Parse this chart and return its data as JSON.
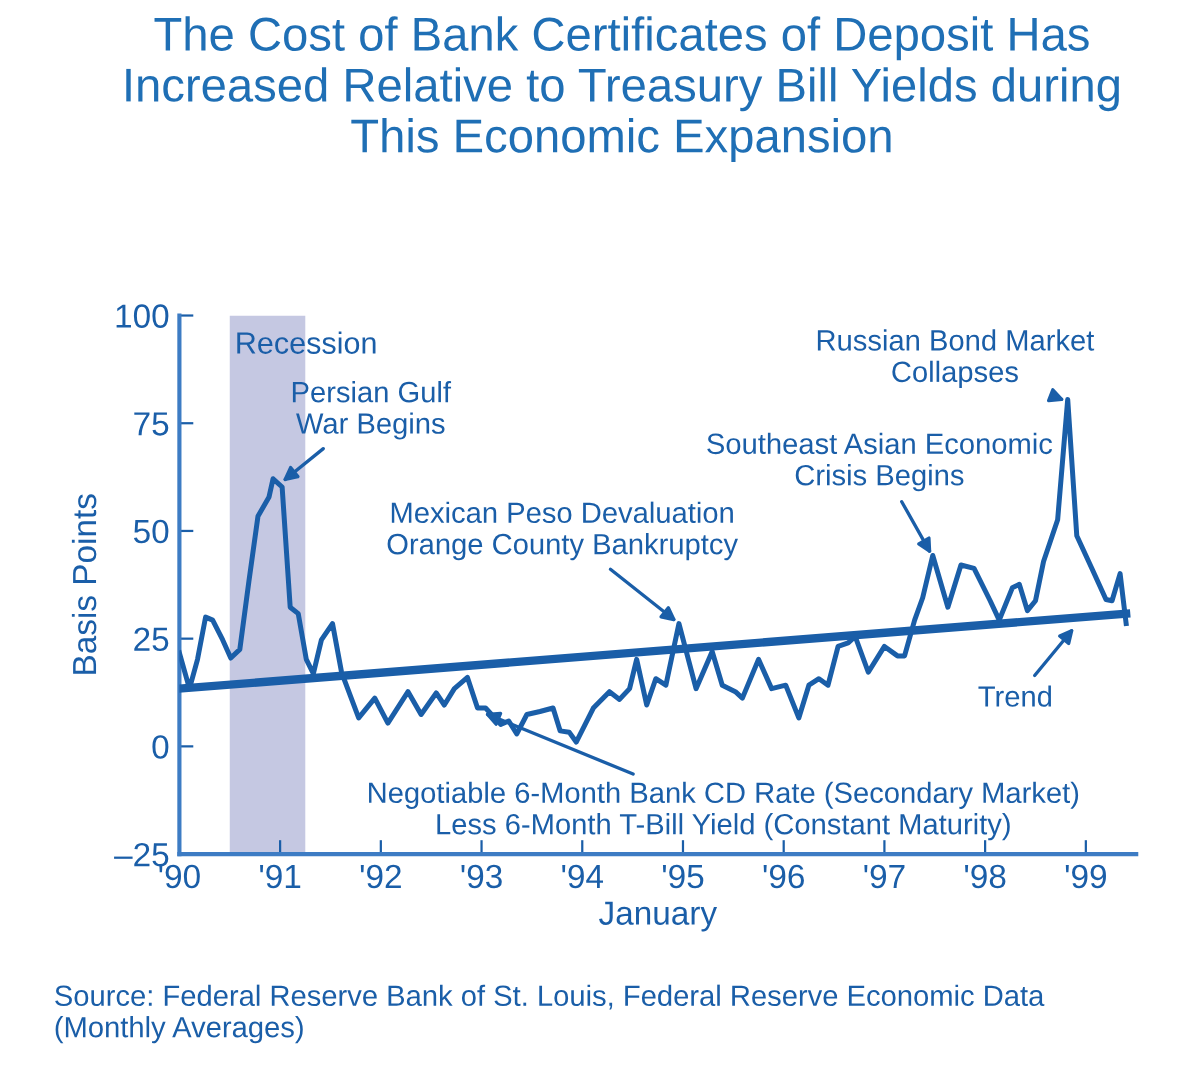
{
  "chart_data": {
    "type": "line",
    "title": "The Cost of Bank Certificates of Deposit Has\nIncreased Relative to Treasury Bill Yields during\nThis Economic Expansion",
    "xlabel": "January",
    "ylabel": "Basis Points",
    "xlim": [
      1990,
      1999.5
    ],
    "ylim": [
      -25,
      100
    ],
    "xticks": [
      {
        "value": 1990,
        "label": "'90"
      },
      {
        "value": 1991,
        "label": "'91"
      },
      {
        "value": 1992,
        "label": "'92"
      },
      {
        "value": 1993,
        "label": "'93"
      },
      {
        "value": 1994,
        "label": "'94"
      },
      {
        "value": 1995,
        "label": "'95"
      },
      {
        "value": 1996,
        "label": "'96"
      },
      {
        "value": 1997,
        "label": "'97"
      },
      {
        "value": 1998,
        "label": "'98"
      },
      {
        "value": 1999,
        "label": "'99"
      }
    ],
    "yticks": [
      {
        "value": -25,
        "label": "–25"
      },
      0,
      25,
      50,
      75,
      100
    ],
    "grid": false,
    "legend": false,
    "marker": "none",
    "line_style": "solid",
    "bands": [
      {
        "axis": "x",
        "from": 1990.5,
        "to": 1991.25,
        "label": "Recession",
        "color": "#c5c8e2"
      }
    ],
    "series": [
      {
        "color": "#1a5ea8",
        "x": [
          1990.0,
          1990.1,
          1990.18,
          1990.26,
          1990.33,
          1990.43,
          1990.51,
          1990.6,
          1990.69,
          1990.78,
          1990.89,
          1990.93,
          1991.02,
          1991.1,
          1991.18,
          1991.26,
          1991.33,
          1991.41,
          1991.52,
          1991.61,
          1991.78,
          1991.94,
          1992.07,
          1992.27,
          1992.4,
          1992.55,
          1992.63,
          1992.73,
          1992.86,
          1992.96,
          1993.04,
          1993.19,
          1993.27,
          1993.35,
          1993.45,
          1993.58,
          1993.71,
          1993.78,
          1993.87,
          1993.94,
          1994.11,
          1994.27,
          1994.37,
          1994.47,
          1994.54,
          1994.64,
          1994.73,
          1994.83,
          1994.96,
          1995.13,
          1995.29,
          1995.39,
          1995.52,
          1995.59,
          1995.75,
          1995.88,
          1996.02,
          1996.15,
          1996.25,
          1996.35,
          1996.44,
          1996.54,
          1996.64,
          1996.71,
          1996.84,
          1997.0,
          1997.13,
          1997.2,
          1997.3,
          1997.38,
          1997.48,
          1997.63,
          1997.76,
          1997.89,
          1998.05,
          1998.14,
          1998.27,
          1998.34,
          1998.42,
          1998.5,
          1998.58,
          1998.72,
          1998.82,
          1998.91,
          1999.06,
          1999.2,
          1999.26,
          1999.34,
          1999.4
        ],
        "values": [
          21.7,
          13.4,
          20.2,
          30.0,
          29.3,
          24.7,
          20.5,
          22.5,
          38.3,
          53.4,
          57.9,
          62.1,
          60.2,
          32.3,
          30.8,
          20.2,
          16.9,
          24.7,
          28.5,
          17.2,
          6.6,
          11.2,
          5.4,
          12.7,
          7.4,
          12.4,
          9.6,
          13.4,
          16.0,
          8.9,
          8.9,
          5.1,
          5.9,
          2.9,
          7.4,
          8.1,
          8.9,
          3.6,
          3.3,
          1.0,
          8.9,
          12.7,
          10.9,
          13.4,
          20.2,
          9.6,
          15.7,
          14.2,
          28.5,
          13.4,
          22.0,
          14.2,
          12.7,
          11.2,
          20.2,
          13.4,
          14.2,
          6.6,
          14.2,
          15.7,
          14.2,
          23.2,
          24.0,
          25.5,
          17.2,
          23.2,
          21.0,
          21.0,
          29.3,
          34.5,
          44.3,
          32.3,
          42.1,
          41.3,
          33.8,
          29.3,
          36.8,
          37.6,
          31.5,
          33.8,
          42.9,
          52.6,
          80.5,
          48.9,
          41.3,
          34.1,
          33.8,
          40.1,
          28.5
        ]
      },
      {
        "type": "line",
        "color": "#1a5ea8",
        "x": [
          1990.0,
          1999.4
        ],
        "values": [
          13.4,
          30.8
        ]
      }
    ],
    "annotations": [
      {
        "text": "Persian Gulf\nWar Begins",
        "x": 1991.0,
        "y": 61
      },
      {
        "text": "Mexican Peso Devaluation\nOrange County Bankruptcy",
        "x": 1994.96,
        "y": 28.5
      },
      {
        "text": "Southeast Asian Economic\nCrisis Begins",
        "x": 1997.48,
        "y": 44
      },
      {
        "text": "Russian Bond Market\nCollapses",
        "x": 1998.82,
        "y": 80
      },
      {
        "text": "Negotiable 6-Month Bank CD Rate (Secondary Market)\nLess 6-Month T-Bill Yield (Constant Maturity)",
        "x": 1993.0,
        "y": 8
      },
      {
        "text": "Trend",
        "x": 1998.9,
        "y": 28
      },
      "Source: Federal Reserve Bank of St. Louis, Federal Reserve Economic Data\n(Monthly Averages)"
    ]
  }
}
